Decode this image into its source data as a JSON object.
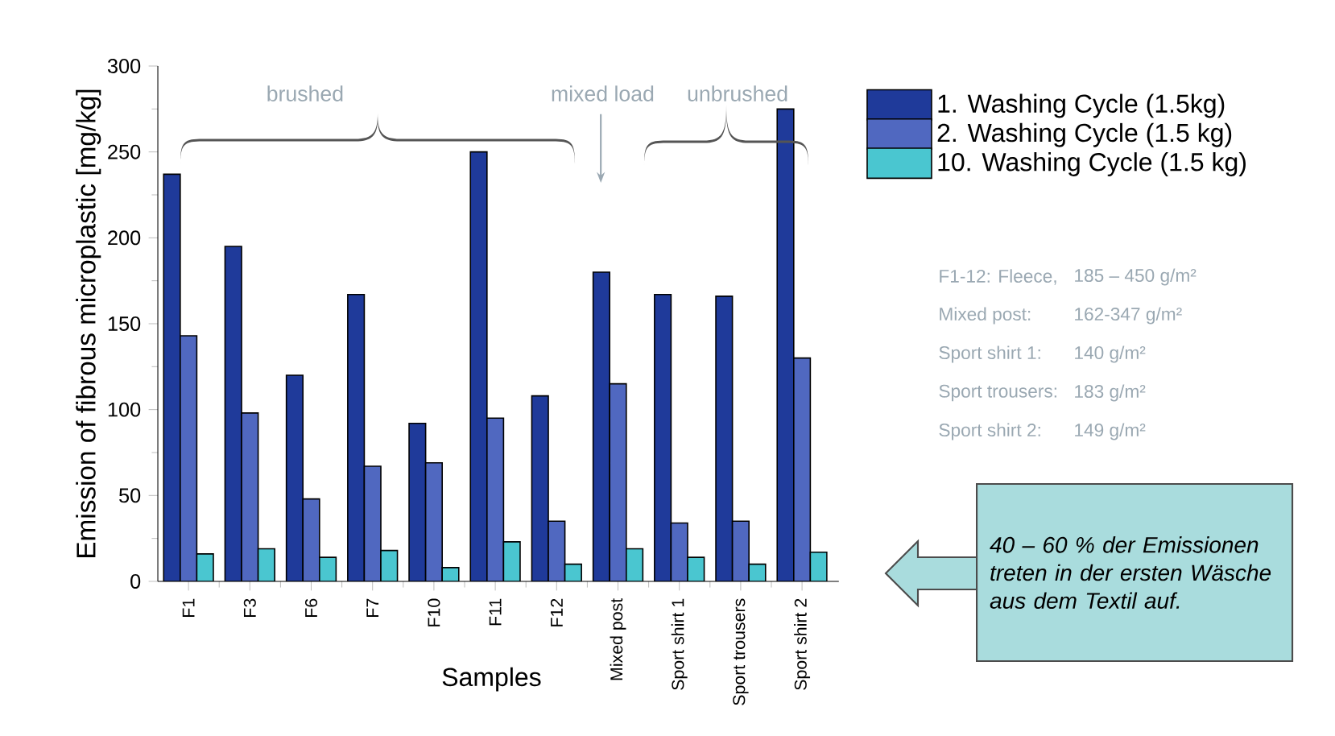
{
  "chart_data": {
    "type": "bar",
    "ylabel": "Emission of fibrous microplastic [mg/kg]",
    "xlabel": "Samples",
    "categories": [
      "F1",
      "F3",
      "F6",
      "F7",
      "F10",
      "F11",
      "F12",
      "Mixed post",
      "Sport shirt 1",
      "Sport trousers",
      "Sport shirt 2"
    ],
    "series": [
      {
        "name": "1. Washing Cycle (1.5kg)",
        "color": "#1f3a9a",
        "values": [
          237,
          195,
          120,
          167,
          92,
          250,
          108,
          180,
          167,
          166,
          275
        ]
      },
      {
        "name": "2. Washing Cycle (1.5 kg)",
        "color": "#5068c0",
        "values": [
          143,
          98,
          48,
          67,
          69,
          95,
          35,
          115,
          34,
          35,
          130
        ]
      },
      {
        "name": "10. Washing Cycle (1.5 kg)",
        "color": "#4ac6d0",
        "values": [
          16,
          19,
          14,
          18,
          8,
          23,
          10,
          19,
          14,
          10,
          17
        ]
      }
    ],
    "ylim": [
      0,
      300
    ],
    "yticks": [
      0,
      50,
      100,
      150,
      200,
      250,
      300
    ],
    "legend": "right",
    "annotations": [
      "brushed",
      "mixed load",
      "unbrushed",
      "F1-12: Fleece,",
      "185 – 450 g/m²",
      "Mixed post:",
      "162-347 g/m²",
      "Sport shirt 1:",
      "140 g/m²",
      "Sport trousers:",
      "183 g/m²",
      "Sport shirt 2:",
      "149 g/m²",
      "40 – 60 % der Emissionen treten in der ersten Wäsche aus dem Textil auf."
    ]
  }
}
